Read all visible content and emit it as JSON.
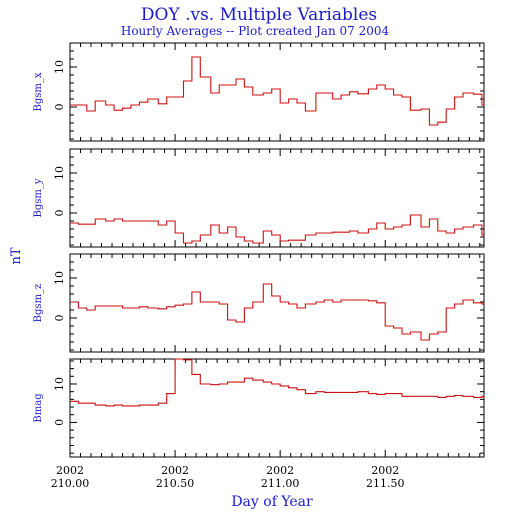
{
  "title": "DOY .vs. Multiple Variables",
  "subtitle": "Hourly Averages -- Plot created Jan 07 2004",
  "xlabel": "Day of Year",
  "shared_ylabel": "nT",
  "x_ticks": [
    {
      "value": 210.0,
      "year": "2002",
      "doy": "210.00"
    },
    {
      "value": 210.5,
      "year": "2002",
      "doy": "210.50"
    },
    {
      "value": 211.0,
      "year": "2002",
      "doy": "211.00"
    },
    {
      "value": 211.5,
      "year": "2002",
      "doy": "211.50"
    }
  ],
  "chart_data": [
    {
      "type": "line",
      "name": "Bgsm_x",
      "ylabel": "Bgsm_x",
      "xlim": [
        210.0,
        211.97
      ],
      "ylim": [
        -8.5,
        16
      ],
      "yticks": [
        0,
        10
      ],
      "x": [
        210.0,
        210.04,
        210.08,
        210.12,
        210.17,
        210.21,
        210.25,
        210.29,
        210.33,
        210.37,
        210.42,
        210.46,
        210.5,
        210.54,
        210.58,
        210.62,
        210.67,
        210.71,
        210.75,
        210.79,
        210.83,
        210.87,
        210.92,
        210.96,
        211.0,
        211.04,
        211.08,
        211.12,
        211.17,
        211.21,
        211.25,
        211.29,
        211.33,
        211.37,
        211.42,
        211.46,
        211.5,
        211.54,
        211.58,
        211.62,
        211.67,
        211.71,
        211.75,
        211.79,
        211.83,
        211.87,
        211.92,
        211.96
      ],
      "y": [
        0.5,
        0.5,
        -1.0,
        1.5,
        0.5,
        -0.8,
        -0.3,
        0.5,
        1.2,
        2.0,
        0.8,
        2.5,
        2.5,
        6.5,
        12.5,
        7.5,
        3.5,
        5.5,
        5.5,
        7.0,
        5.0,
        3.0,
        3.5,
        4.5,
        1.0,
        2.0,
        1.0,
        -1.0,
        3.5,
        3.5,
        2.0,
        3.0,
        3.8,
        3.3,
        4.5,
        5.5,
        4.5,
        3.0,
        2.5,
        -0.8,
        -0.5,
        -4.5,
        -3.8,
        -0.5,
        2.5,
        3.5,
        3.2,
        0.5
      ]
    },
    {
      "type": "line",
      "name": "Bgsm_y",
      "ylabel": "Bgsm_y",
      "xlim": [
        210.0,
        211.97
      ],
      "ylim": [
        -8.5,
        16
      ],
      "yticks": [
        0,
        10
      ],
      "x": [
        210.0,
        210.04,
        210.08,
        210.12,
        210.17,
        210.21,
        210.25,
        210.29,
        210.33,
        210.37,
        210.42,
        210.46,
        210.5,
        210.54,
        210.58,
        210.62,
        210.67,
        210.71,
        210.75,
        210.79,
        210.83,
        210.87,
        210.92,
        210.96,
        211.0,
        211.04,
        211.08,
        211.12,
        211.17,
        211.21,
        211.25,
        211.29,
        211.33,
        211.37,
        211.42,
        211.46,
        211.5,
        211.54,
        211.58,
        211.62,
        211.67,
        211.71,
        211.75,
        211.79,
        211.83,
        211.87,
        211.92,
        211.96
      ],
      "y": [
        -2.5,
        -2.8,
        -2.8,
        -1.5,
        -2.0,
        -1.5,
        -2.0,
        -2.0,
        -2.0,
        -2.0,
        -3.0,
        -2.0,
        -5.0,
        -7.5,
        -7.0,
        -5.5,
        -3.0,
        -5.0,
        -3.5,
        -6.0,
        -7.0,
        -7.5,
        -4.5,
        -5.5,
        -7.0,
        -6.8,
        -6.8,
        -5.5,
        -5.0,
        -5.0,
        -4.8,
        -4.8,
        -4.5,
        -5.0,
        -4.0,
        -2.5,
        -4.0,
        -3.5,
        -3.0,
        -0.5,
        -3.5,
        -1.5,
        -4.5,
        -5.0,
        -4.0,
        -3.5,
        -3.0,
        -5.5
      ]
    },
    {
      "type": "line",
      "name": "Bgsm_z",
      "ylabel": "Bgsm_z",
      "xlim": [
        210.0,
        211.97
      ],
      "ylim": [
        -8.5,
        16
      ],
      "yticks": [
        0,
        10
      ],
      "x": [
        210.0,
        210.04,
        210.08,
        210.12,
        210.17,
        210.21,
        210.25,
        210.29,
        210.33,
        210.37,
        210.42,
        210.46,
        210.5,
        210.54,
        210.58,
        210.62,
        210.67,
        210.71,
        210.75,
        210.79,
        210.83,
        210.87,
        210.92,
        210.96,
        211.0,
        211.04,
        211.08,
        211.12,
        211.17,
        211.21,
        211.25,
        211.29,
        211.33,
        211.37,
        211.42,
        211.46,
        211.5,
        211.54,
        211.58,
        211.62,
        211.67,
        211.71,
        211.75,
        211.79,
        211.83,
        211.87,
        211.92,
        211.96
      ],
      "y": [
        4.0,
        2.5,
        2.0,
        3.0,
        3.0,
        3.0,
        2.5,
        2.5,
        2.8,
        2.5,
        2.3,
        2.8,
        3.2,
        3.5,
        6.5,
        4.0,
        4.0,
        3.5,
        -0.5,
        -1.0,
        2.5,
        4.0,
        8.5,
        5.5,
        4.0,
        3.5,
        2.5,
        3.5,
        4.0,
        4.5,
        4.0,
        4.5,
        4.5,
        4.5,
        4.3,
        3.8,
        -2.0,
        -2.5,
        -4.0,
        -3.5,
        -5.5,
        -4.0,
        -3.5,
        2.5,
        3.5,
        4.5,
        3.8,
        3.5
      ]
    },
    {
      "type": "line",
      "name": "Bmag",
      "ylabel": "Bmag",
      "xlim": [
        210.0,
        211.97
      ],
      "ylim": [
        -9.0,
        16.5
      ],
      "yticks": [
        0,
        10
      ],
      "x": [
        210.0,
        210.04,
        210.08,
        210.12,
        210.17,
        210.21,
        210.25,
        210.29,
        210.33,
        210.37,
        210.42,
        210.46,
        210.5,
        210.54,
        210.58,
        210.62,
        210.67,
        210.71,
        210.75,
        210.79,
        210.83,
        210.87,
        210.92,
        210.96,
        211.0,
        211.04,
        211.08,
        211.12,
        211.17,
        211.21,
        211.25,
        211.29,
        211.33,
        211.37,
        211.42,
        211.46,
        211.5,
        211.54,
        211.58,
        211.62,
        211.67,
        211.71,
        211.75,
        211.79,
        211.83,
        211.87,
        211.92,
        211.96
      ],
      "y": [
        5.5,
        5.0,
        5.0,
        4.5,
        4.3,
        4.5,
        4.3,
        4.3,
        4.5,
        4.5,
        5.0,
        7.5,
        16.5,
        16.3,
        12.5,
        10.0,
        9.8,
        10.0,
        10.5,
        10.5,
        11.5,
        11.0,
        10.5,
        10.0,
        9.5,
        9.0,
        8.5,
        7.5,
        8.0,
        7.8,
        7.8,
        7.8,
        7.8,
        8.0,
        7.5,
        7.3,
        7.5,
        7.5,
        6.8,
        6.8,
        6.8,
        6.8,
        6.5,
        6.8,
        7.0,
        6.8,
        6.5,
        6.8
      ]
    }
  ]
}
